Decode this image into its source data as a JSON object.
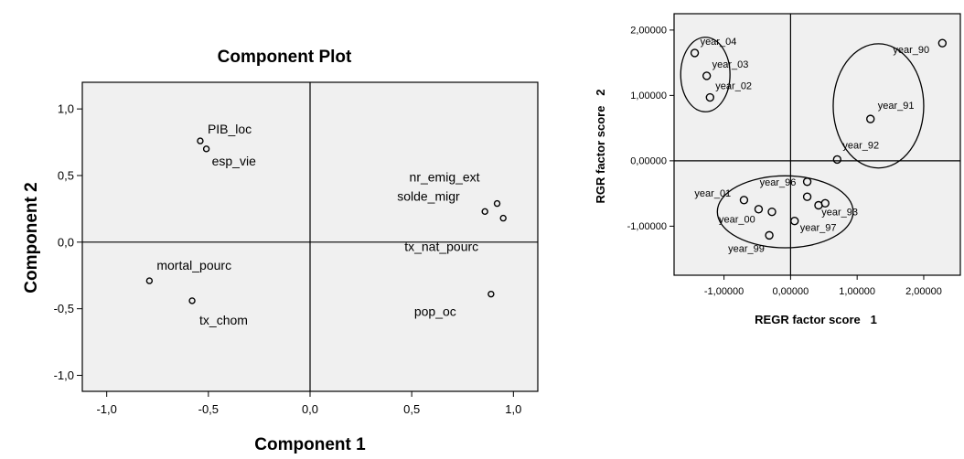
{
  "chart_data": [
    {
      "type": "scatter",
      "title": "Component Plot",
      "xlabel": "Component 1",
      "ylabel": "Component 2",
      "xlim": [
        -1.12,
        1.12
      ],
      "ylim": [
        -1.12,
        1.2
      ],
      "x_ticks": [
        -1.0,
        -0.5,
        0.0,
        0.5,
        1.0
      ],
      "y_ticks": [
        -1.0,
        -0.5,
        0.0,
        0.5,
        1.0
      ],
      "x_tick_labels": [
        "-1,0",
        "-0,5",
        "0,0",
        "0,5",
        "1,0"
      ],
      "y_tick_labels": [
        "-1,0",
        "-0,5",
        "0,0",
        "0,5",
        "1,0"
      ],
      "reference_lines": {
        "x": 0,
        "y": 0
      },
      "background": "#f0f0f0",
      "points": [
        {
          "label": "PIB_loc",
          "x": -0.54,
          "y": 0.76
        },
        {
          "label": "esp_vie",
          "x": -0.51,
          "y": 0.7
        },
        {
          "label": "nr_emig_ext",
          "x": 0.92,
          "y": 0.29
        },
        {
          "label": "solde_migr",
          "x": 0.86,
          "y": 0.23
        },
        {
          "label": "tx_nat_pourc",
          "x": 0.95,
          "y": 0.18
        },
        {
          "label": "mortal_pourc",
          "x": -0.79,
          "y": -0.29
        },
        {
          "label": "tx_chom",
          "x": -0.58,
          "y": -0.44
        },
        {
          "label": "pop_oc",
          "x": 0.89,
          "y": -0.39
        }
      ]
    },
    {
      "type": "scatter",
      "title": "",
      "xlabel": "REGR factor score   1",
      "ylabel": "RGR factor score   2",
      "xlim": [
        -1.75,
        2.55
      ],
      "ylim": [
        -1.75,
        2.25
      ],
      "x_ticks": [
        -1.0,
        0.0,
        1.0,
        2.0
      ],
      "y_ticks": [
        -1.0,
        0.0,
        1.0,
        2.0
      ],
      "x_tick_labels": [
        "-1,00000",
        "0,00000",
        "1,00000",
        "2,00000"
      ],
      "y_tick_labels": [
        "-1,00000",
        "0,00000",
        "1,00000",
        "2,00000"
      ],
      "reference_lines": {
        "x": 0,
        "y": 0
      },
      "background": "#f0f0f0",
      "points": [
        {
          "label": "year_04",
          "x": -1.44,
          "y": 1.65
        },
        {
          "label": "year_03",
          "x": -1.26,
          "y": 1.3
        },
        {
          "label": "year_02",
          "x": -1.21,
          "y": 0.97
        },
        {
          "label": "year_90",
          "x": 2.28,
          "y": 1.8
        },
        {
          "label": "year_91",
          "x": 1.2,
          "y": 0.64
        },
        {
          "label": "year_92",
          "x": 0.7,
          "y": 0.02
        },
        {
          "label": "year_96",
          "x": 0.25,
          "y": -0.32
        },
        {
          "label": "year_93",
          "x": 0.52,
          "y": -0.65
        },
        {
          "label": "year_01",
          "x": -0.7,
          "y": -0.6
        },
        {
          "label": "year_00",
          "x": -0.28,
          "y": -0.78
        },
        {
          "label": "year_97",
          "x": 0.06,
          "y": -0.92
        },
        {
          "label": "year_99",
          "x": -0.32,
          "y": -1.14
        },
        {
          "label": "",
          "x": 0.25,
          "y": -0.55
        },
        {
          "label": "",
          "x": 0.42,
          "y": -0.68
        },
        {
          "label": "",
          "x": -0.48,
          "y": -0.74
        }
      ],
      "ellipses": [
        {
          "cx": -1.28,
          "cy": 1.32,
          "rx": 0.37,
          "ry": 0.57
        },
        {
          "cx": 1.32,
          "cy": 0.84,
          "rx": 0.68,
          "ry": 0.95
        },
        {
          "cx": -0.08,
          "cy": -0.78,
          "rx": 1.02,
          "ry": 0.55
        }
      ]
    }
  ]
}
